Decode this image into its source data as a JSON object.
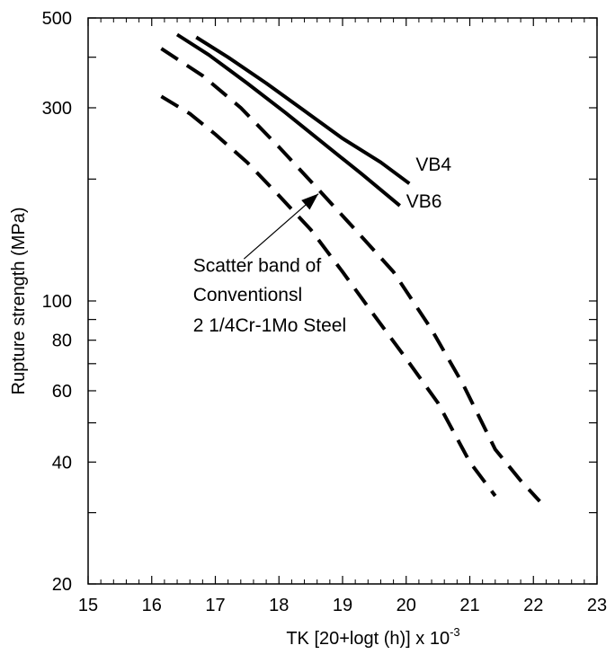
{
  "chart_data": {
    "type": "line",
    "title": "",
    "xlabel": "TK [20+logt (h)] x 10",
    "xlabel_exponent": "-3",
    "ylabel": "Rupture strength (MPa)",
    "xlim": [
      15,
      23
    ],
    "ylim": [
      20,
      500
    ],
    "yscale": "log",
    "grid": false,
    "x_ticks": [
      15,
      16,
      17,
      18,
      19,
      20,
      21,
      22,
      23
    ],
    "y_ticks": [
      20,
      40,
      60,
      80,
      100,
      300,
      500
    ],
    "series": [
      {
        "name": "VB4",
        "style": "solid",
        "points": [
          [
            16.7,
            448
          ],
          [
            17.2,
            400
          ],
          [
            17.8,
            345
          ],
          [
            18.4,
            295
          ],
          [
            19.0,
            252
          ],
          [
            19.6,
            220
          ],
          [
            20.05,
            195
          ]
        ]
      },
      {
        "name": "VB6",
        "style": "solid",
        "points": [
          [
            16.4,
            455
          ],
          [
            16.9,
            405
          ],
          [
            17.5,
            345
          ],
          [
            18.1,
            292
          ],
          [
            18.7,
            245
          ],
          [
            19.3,
            206
          ],
          [
            19.9,
            172
          ]
        ]
      },
      {
        "style": "dashed",
        "points": [
          [
            16.15,
            420
          ],
          [
            16.8,
            360
          ],
          [
            17.4,
            300
          ],
          [
            18.0,
            240
          ],
          [
            18.6,
            190
          ],
          [
            19.2,
            150
          ],
          [
            19.8,
            118
          ],
          [
            20.4,
            85
          ],
          [
            20.9,
            62
          ],
          [
            21.4,
            43
          ],
          [
            21.8,
            36
          ],
          [
            22.1,
            32
          ]
        ]
      },
      {
        "style": "dashed",
        "points": [
          [
            16.15,
            320
          ],
          [
            16.6,
            290
          ],
          [
            17.0,
            258
          ],
          [
            17.5,
            220
          ],
          [
            18.0,
            182
          ],
          [
            18.5,
            150
          ],
          [
            19.0,
            118
          ],
          [
            19.5,
            92
          ],
          [
            20.0,
            72
          ],
          [
            20.5,
            56
          ],
          [
            21.0,
            40
          ],
          [
            21.4,
            33
          ]
        ]
      }
    ],
    "annotations": [
      {
        "text": "VB4",
        "x": 20.15,
        "y": 210
      },
      {
        "text": "VB6",
        "x": 20.0,
        "y": 170
      },
      {
        "text": "Scatter band of",
        "x": 16.65,
        "y": 118
      },
      {
        "text": "Conventionsl",
        "x": 16.65,
        "y": 100
      },
      {
        "text": "2 1/4Cr-1Mo Steel",
        "x": 16.65,
        "y": 84
      }
    ],
    "arrow": {
      "from": [
        17.45,
        127
      ],
      "to": [
        18.62,
        184
      ]
    }
  }
}
